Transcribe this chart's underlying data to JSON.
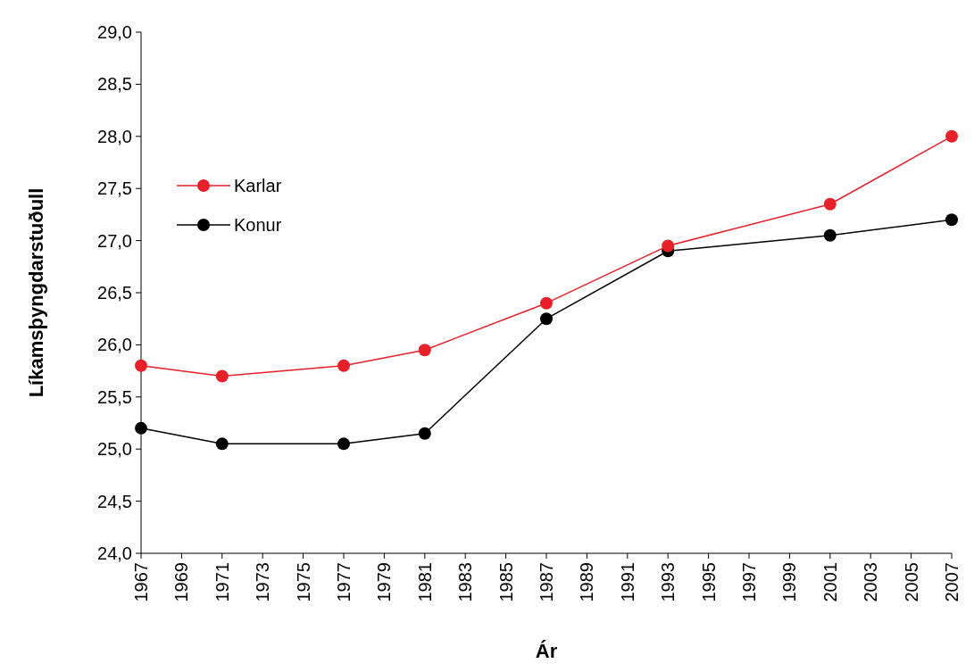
{
  "chart_data": {
    "type": "line",
    "xlabel": "Ár",
    "ylabel": "Líkamsþyngdarstuðull",
    "x": [
      1967,
      1971,
      1977,
      1981,
      1987,
      1993,
      2001,
      2007
    ],
    "series": [
      {
        "name": "Karlar",
        "color": "#e8202a",
        "values": [
          25.8,
          25.7,
          25.8,
          25.95,
          26.4,
          26.95,
          27.35,
          28.0
        ]
      },
      {
        "name": "Konur",
        "color": "#000000",
        "values": [
          25.2,
          25.05,
          25.05,
          25.15,
          26.25,
          26.9,
          27.05,
          27.2
        ]
      }
    ],
    "xlim": [
      1967,
      2007
    ],
    "xticks": [
      1967,
      1969,
      1971,
      1973,
      1975,
      1977,
      1979,
      1981,
      1983,
      1985,
      1987,
      1989,
      1991,
      1993,
      1995,
      1997,
      1999,
      2001,
      2003,
      2005,
      2007
    ],
    "ylim": [
      24,
      29
    ],
    "yticks": [
      {
        "value": 24,
        "label": "24,0"
      },
      {
        "value": 24.5,
        "label": "24,5"
      },
      {
        "value": 25,
        "label": "25,0"
      },
      {
        "value": 25.5,
        "label": "25,5"
      },
      {
        "value": 26,
        "label": "26,0"
      },
      {
        "value": 26.5,
        "label": "26,5"
      },
      {
        "value": 27,
        "label": "27,0"
      },
      {
        "value": 27.5,
        "label": "27,5"
      },
      {
        "value": 28,
        "label": "28,0"
      },
      {
        "value": 28.5,
        "label": "28,5"
      },
      {
        "value": 29,
        "label": "29,0"
      }
    ],
    "legend": "top left",
    "marker": "circle",
    "grid": false
  }
}
